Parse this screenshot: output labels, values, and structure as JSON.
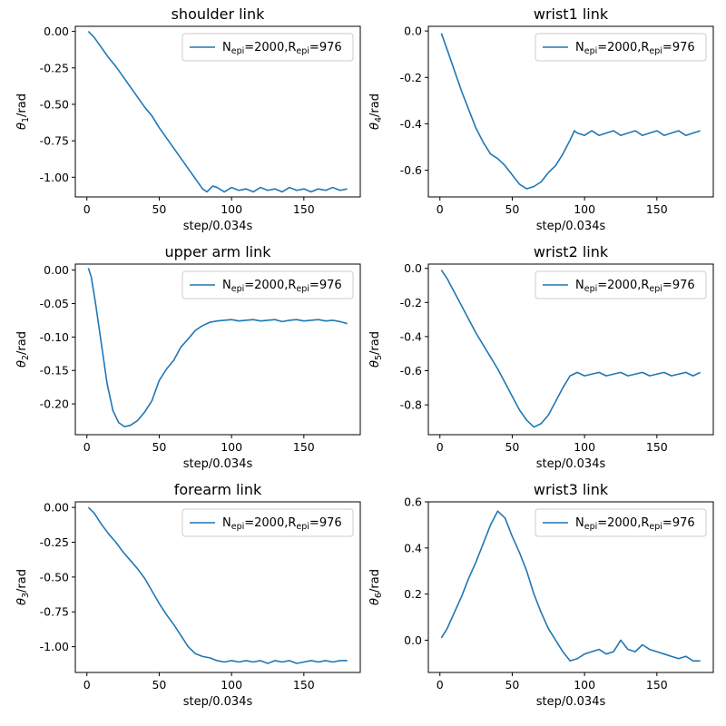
{
  "chart_data": [
    {
      "type": "line",
      "title": "shoulder link",
      "xlabel": "step/0.034s",
      "ylabel": {
        "base": "θ",
        "sub": "1",
        "suffix": "/rad"
      },
      "xlim": [
        -8,
        189
      ],
      "ylim": [
        -1.135,
        0.035
      ],
      "xticks": [
        {
          "v": 0,
          "label": "0"
        },
        {
          "v": 50,
          "label": "50"
        },
        {
          "v": 100,
          "label": "100"
        },
        {
          "v": 150,
          "label": "150"
        }
      ],
      "yticks": [
        {
          "v": 0,
          "label": "0.00"
        },
        {
          "v": -0.25,
          "label": "-0.25"
        },
        {
          "v": -0.5,
          "label": "-0.50"
        },
        {
          "v": -0.75,
          "label": "-0.75"
        },
        {
          "v": -1.0,
          "label": "-1.00"
        }
      ],
      "legend": {
        "position": "upper right",
        "parts": [
          "N",
          "epi",
          "=2000,R",
          "epi",
          "=976"
        ]
      },
      "color": "#1f77b4",
      "series": [
        {
          "x": [
            1,
            5,
            10,
            15,
            20,
            25,
            30,
            35,
            40,
            45,
            50,
            55,
            60,
            65,
            70,
            75,
            80,
            83,
            87,
            90,
            95,
            100,
            105,
            110,
            115,
            120,
            125,
            130,
            135,
            140,
            145,
            150,
            155,
            160,
            165,
            170,
            175,
            180
          ],
          "y": [
            0.0,
            -0.04,
            -0.11,
            -0.18,
            -0.24,
            -0.31,
            -0.38,
            -0.45,
            -0.52,
            -0.58,
            -0.66,
            -0.73,
            -0.8,
            -0.87,
            -0.94,
            -1.01,
            -1.08,
            -1.1,
            -1.06,
            -1.07,
            -1.1,
            -1.07,
            -1.09,
            -1.08,
            -1.1,
            -1.07,
            -1.09,
            -1.08,
            -1.1,
            -1.07,
            -1.09,
            -1.08,
            -1.1,
            -1.08,
            -1.09,
            -1.07,
            -1.09,
            -1.08
          ]
        }
      ]
    },
    {
      "type": "line",
      "title": "wrist1 link",
      "xlabel": "step/0.034s",
      "ylabel": {
        "base": "θ",
        "sub": "4",
        "suffix": "/rad"
      },
      "xlim": [
        -8,
        189
      ],
      "ylim": [
        -0.715,
        0.02
      ],
      "xticks": [
        {
          "v": 0,
          "label": "0"
        },
        {
          "v": 50,
          "label": "50"
        },
        {
          "v": 100,
          "label": "100"
        },
        {
          "v": 150,
          "label": "150"
        }
      ],
      "yticks": [
        {
          "v": 0,
          "label": "0.0"
        },
        {
          "v": -0.2,
          "label": "-0.2"
        },
        {
          "v": -0.4,
          "label": "-0.4"
        },
        {
          "v": -0.6,
          "label": "-0.6"
        }
      ],
      "legend": {
        "position": "upper right",
        "parts": [
          "N",
          "epi",
          "=2000,R",
          "epi",
          "=976"
        ]
      },
      "color": "#1f77b4",
      "series": [
        {
          "x": [
            1,
            5,
            10,
            15,
            20,
            25,
            30,
            35,
            40,
            45,
            50,
            55,
            60,
            65,
            70,
            75,
            80,
            85,
            90,
            93,
            95,
            100,
            105,
            110,
            115,
            120,
            125,
            130,
            135,
            140,
            145,
            150,
            155,
            160,
            165,
            170,
            175,
            180
          ],
          "y": [
            -0.01,
            -0.08,
            -0.17,
            -0.26,
            -0.34,
            -0.42,
            -0.48,
            -0.53,
            -0.55,
            -0.58,
            -0.62,
            -0.66,
            -0.68,
            -0.67,
            -0.65,
            -0.61,
            -0.58,
            -0.53,
            -0.47,
            -0.43,
            -0.44,
            -0.45,
            -0.43,
            -0.45,
            -0.44,
            -0.43,
            -0.45,
            -0.44,
            -0.43,
            -0.45,
            -0.44,
            -0.43,
            -0.45,
            -0.44,
            -0.43,
            -0.45,
            -0.44,
            -0.43
          ]
        }
      ]
    },
    {
      "type": "line",
      "title": "upper arm link",
      "xlabel": "step/0.034s",
      "ylabel": {
        "base": "θ",
        "sub": "2",
        "suffix": "/rad"
      },
      "xlim": [
        -8,
        189
      ],
      "ylim": [
        -0.246,
        0.009
      ],
      "xticks": [
        {
          "v": 0,
          "label": "0"
        },
        {
          "v": 50,
          "label": "50"
        },
        {
          "v": 100,
          "label": "100"
        },
        {
          "v": 150,
          "label": "150"
        }
      ],
      "yticks": [
        {
          "v": 0,
          "label": "0.00"
        },
        {
          "v": -0.05,
          "label": "-0.05"
        },
        {
          "v": -0.1,
          "label": "-0.10"
        },
        {
          "v": -0.15,
          "label": "-0.15"
        },
        {
          "v": -0.2,
          "label": "-0.20"
        }
      ],
      "legend": {
        "position": "upper right",
        "parts": [
          "N",
          "epi",
          "=2000,R",
          "epi",
          "=976"
        ]
      },
      "color": "#1f77b4",
      "series": [
        {
          "x": [
            1,
            3,
            6,
            10,
            14,
            18,
            22,
            26,
            30,
            35,
            40,
            45,
            50,
            55,
            60,
            65,
            70,
            75,
            80,
            85,
            90,
            95,
            100,
            105,
            110,
            115,
            120,
            125,
            130,
            135,
            140,
            145,
            150,
            155,
            160,
            165,
            170,
            175,
            180
          ],
          "y": [
            0.003,
            -0.01,
            -0.05,
            -0.11,
            -0.17,
            -0.21,
            -0.228,
            -0.234,
            -0.232,
            -0.225,
            -0.212,
            -0.195,
            -0.165,
            -0.148,
            -0.135,
            -0.115,
            -0.103,
            -0.09,
            -0.083,
            -0.078,
            -0.076,
            -0.075,
            -0.074,
            -0.076,
            -0.075,
            -0.074,
            -0.076,
            -0.075,
            -0.074,
            -0.077,
            -0.075,
            -0.074,
            -0.076,
            -0.075,
            -0.074,
            -0.076,
            -0.075,
            -0.077,
            -0.08
          ]
        }
      ]
    },
    {
      "type": "line",
      "title": "wrist2 link",
      "xlabel": "step/0.034s",
      "ylabel": {
        "base": "θ",
        "sub": "5",
        "suffix": "/rad"
      },
      "xlim": [
        -8,
        189
      ],
      "ylim": [
        -0.975,
        0.025
      ],
      "xticks": [
        {
          "v": 0,
          "label": "0"
        },
        {
          "v": 50,
          "label": "50"
        },
        {
          "v": 100,
          "label": "100"
        },
        {
          "v": 150,
          "label": "150"
        }
      ],
      "yticks": [
        {
          "v": 0,
          "label": "0.0"
        },
        {
          "v": -0.2,
          "label": "-0.2"
        },
        {
          "v": -0.4,
          "label": "-0.4"
        },
        {
          "v": -0.6,
          "label": "-0.6"
        },
        {
          "v": -0.8,
          "label": "-0.8"
        }
      ],
      "legend": {
        "position": "upper right",
        "parts": [
          "N",
          "epi",
          "=2000,R",
          "epi",
          "=976"
        ]
      },
      "color": "#1f77b4",
      "series": [
        {
          "x": [
            1,
            5,
            10,
            15,
            20,
            25,
            30,
            35,
            40,
            45,
            50,
            55,
            60,
            65,
            70,
            75,
            80,
            85,
            90,
            95,
            100,
            105,
            110,
            115,
            120,
            125,
            130,
            135,
            140,
            145,
            150,
            155,
            160,
            165,
            170,
            175,
            180
          ],
          "y": [
            -0.01,
            -0.06,
            -0.14,
            -0.22,
            -0.3,
            -0.38,
            -0.45,
            -0.52,
            -0.59,
            -0.67,
            -0.75,
            -0.83,
            -0.89,
            -0.93,
            -0.91,
            -0.86,
            -0.78,
            -0.7,
            -0.63,
            -0.61,
            -0.63,
            -0.62,
            -0.61,
            -0.63,
            -0.62,
            -0.61,
            -0.63,
            -0.62,
            -0.61,
            -0.63,
            -0.62,
            -0.61,
            -0.63,
            -0.62,
            -0.61,
            -0.63,
            -0.61
          ]
        }
      ]
    },
    {
      "type": "line",
      "title": "forearm link",
      "xlabel": "step/0.034s",
      "ylabel": {
        "base": "θ",
        "sub": "3",
        "suffix": "/rad"
      },
      "xlim": [
        -8,
        189
      ],
      "ylim": [
        -1.185,
        0.04
      ],
      "xticks": [
        {
          "v": 0,
          "label": "0"
        },
        {
          "v": 50,
          "label": "50"
        },
        {
          "v": 100,
          "label": "100"
        },
        {
          "v": 150,
          "label": "150"
        }
      ],
      "yticks": [
        {
          "v": 0,
          "label": "0.00"
        },
        {
          "v": -0.25,
          "label": "-0.25"
        },
        {
          "v": -0.5,
          "label": "-0.50"
        },
        {
          "v": -0.75,
          "label": "-0.75"
        },
        {
          "v": -1.0,
          "label": "-1.00"
        }
      ],
      "legend": {
        "position": "upper right",
        "parts": [
          "N",
          "epi",
          "=2000,R",
          "epi",
          "=976"
        ]
      },
      "color": "#1f77b4",
      "series": [
        {
          "x": [
            1,
            5,
            10,
            15,
            20,
            25,
            30,
            35,
            40,
            45,
            50,
            55,
            60,
            65,
            70,
            75,
            80,
            85,
            90,
            95,
            100,
            105,
            110,
            115,
            120,
            125,
            130,
            135,
            140,
            145,
            150,
            155,
            160,
            165,
            170,
            175,
            180
          ],
          "y": [
            0.0,
            -0.04,
            -0.12,
            -0.19,
            -0.25,
            -0.32,
            -0.38,
            -0.44,
            -0.51,
            -0.6,
            -0.69,
            -0.77,
            -0.84,
            -0.92,
            -1.0,
            -1.05,
            -1.07,
            -1.08,
            -1.1,
            -1.11,
            -1.1,
            -1.11,
            -1.1,
            -1.11,
            -1.1,
            -1.12,
            -1.1,
            -1.11,
            -1.1,
            -1.12,
            -1.11,
            -1.1,
            -1.11,
            -1.1,
            -1.11,
            -1.1,
            -1.1
          ]
        }
      ]
    },
    {
      "type": "line",
      "title": "wrist3 link",
      "xlabel": "step/0.034s",
      "ylabel": {
        "base": "θ",
        "sub": "6",
        "suffix": "/rad"
      },
      "xlim": [
        -8,
        189
      ],
      "ylim": [
        -0.14,
        0.6
      ],
      "xticks": [
        {
          "v": 0,
          "label": "0"
        },
        {
          "v": 50,
          "label": "50"
        },
        {
          "v": 100,
          "label": "100"
        },
        {
          "v": 150,
          "label": "150"
        }
      ],
      "yticks": [
        {
          "v": 0.6,
          "label": "0.6"
        },
        {
          "v": 0.4,
          "label": "0.4"
        },
        {
          "v": 0.2,
          "label": "0.2"
        },
        {
          "v": 0.0,
          "label": "0.0"
        }
      ],
      "legend": {
        "position": "upper right",
        "parts": [
          "N",
          "epi",
          "=2000,R",
          "epi",
          "=976"
        ]
      },
      "color": "#1f77b4",
      "series": [
        {
          "x": [
            1,
            5,
            10,
            15,
            20,
            25,
            30,
            35,
            40,
            45,
            50,
            55,
            60,
            65,
            70,
            75,
            80,
            85,
            90,
            95,
            100,
            105,
            110,
            115,
            120,
            125,
            130,
            135,
            140,
            145,
            150,
            155,
            160,
            165,
            170,
            175,
            180
          ],
          "y": [
            0.01,
            0.05,
            0.12,
            0.19,
            0.27,
            0.34,
            0.42,
            0.5,
            0.56,
            0.53,
            0.45,
            0.38,
            0.3,
            0.2,
            0.12,
            0.05,
            0.0,
            -0.05,
            -0.09,
            -0.08,
            -0.06,
            -0.05,
            -0.04,
            -0.06,
            -0.05,
            0.0,
            -0.04,
            -0.05,
            -0.02,
            -0.04,
            -0.05,
            -0.06,
            -0.07,
            -0.08,
            -0.07,
            -0.09,
            -0.09
          ]
        }
      ]
    }
  ]
}
